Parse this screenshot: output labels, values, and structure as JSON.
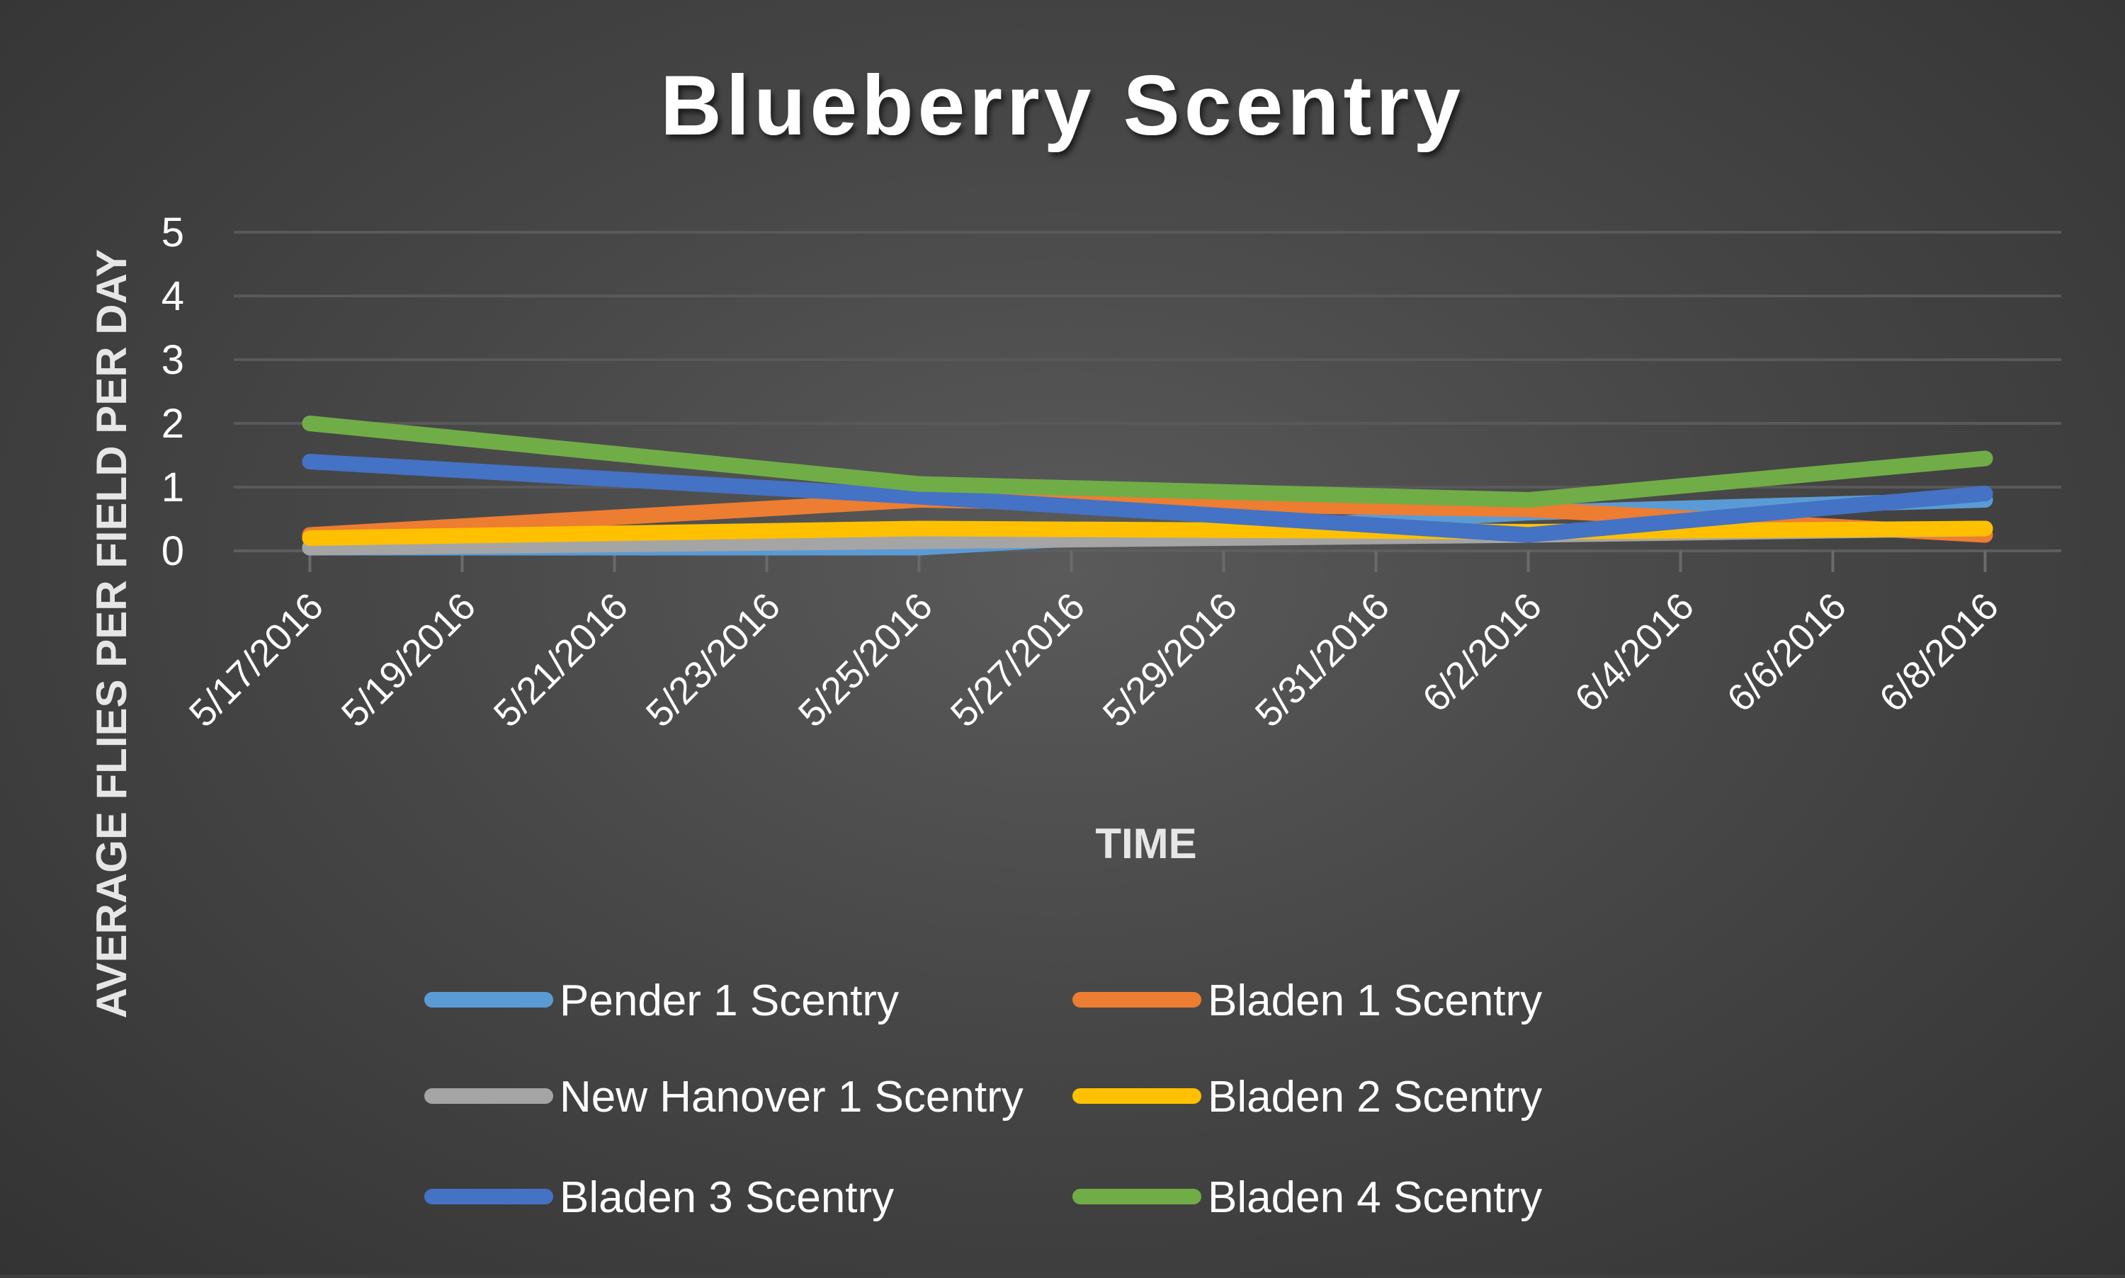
{
  "chart_data": {
    "type": "line",
    "title": "Blueberry Scentry",
    "xlabel": "TIME",
    "ylabel": "AVERAGE FLIES PER FIELD PER DAY",
    "ylim": [
      0,
      5
    ],
    "yticks": [
      0,
      1,
      2,
      3,
      4,
      5
    ],
    "xticks": [
      "5/17/2016",
      "5/19/2016",
      "5/21/2016",
      "5/23/2016",
      "5/25/2016",
      "5/27/2016",
      "5/29/2016",
      "5/31/2016",
      "6/2/2016",
      "6/4/2016",
      "6/6/2016",
      "6/8/2016"
    ],
    "xlim": [
      "2016-05-16",
      "2016-06-09"
    ],
    "grid": true,
    "legend_position": "bottom",
    "series": [
      {
        "name": "Pender 1 Scentry",
        "color": "#5b9bd5",
        "x": [
          "2016-05-17",
          "2016-05-25",
          "2016-06-02",
          "2016-06-08"
        ],
        "y": [
          0.05,
          0.05,
          0.6,
          0.8
        ]
      },
      {
        "name": "Bladen 1 Scentry",
        "color": "#ed7d31",
        "x": [
          "2016-05-17",
          "2016-05-25",
          "2016-06-02",
          "2016-06-08"
        ],
        "y": [
          0.25,
          0.8,
          0.65,
          0.25
        ]
      },
      {
        "name": "New Hanover 1 Scentry",
        "color": "#a5a5a5",
        "x": [
          "2016-05-17",
          "2016-05-25",
          "2016-06-02",
          "2016-06-08"
        ],
        "y": [
          0.05,
          0.15,
          0.25,
          0.35
        ]
      },
      {
        "name": "Bladen 2 Scentry",
        "color": "#ffc000",
        "x": [
          "2016-05-17",
          "2016-05-25",
          "2016-06-02",
          "2016-06-08"
        ],
        "y": [
          0.2,
          0.35,
          0.3,
          0.35
        ]
      },
      {
        "name": "Bladen 3 Scentry",
        "color": "#4472c4",
        "x": [
          "2016-05-17",
          "2016-05-25",
          "2016-06-02",
          "2016-06-08"
        ],
        "y": [
          1.4,
          0.85,
          0.25,
          0.9
        ]
      },
      {
        "name": "Bladen 4 Scentry",
        "color": "#70ad47",
        "x": [
          "2016-05-17",
          "2016-05-25",
          "2016-06-02",
          "2016-06-08"
        ],
        "y": [
          2.0,
          1.05,
          0.8,
          1.45
        ]
      }
    ]
  }
}
